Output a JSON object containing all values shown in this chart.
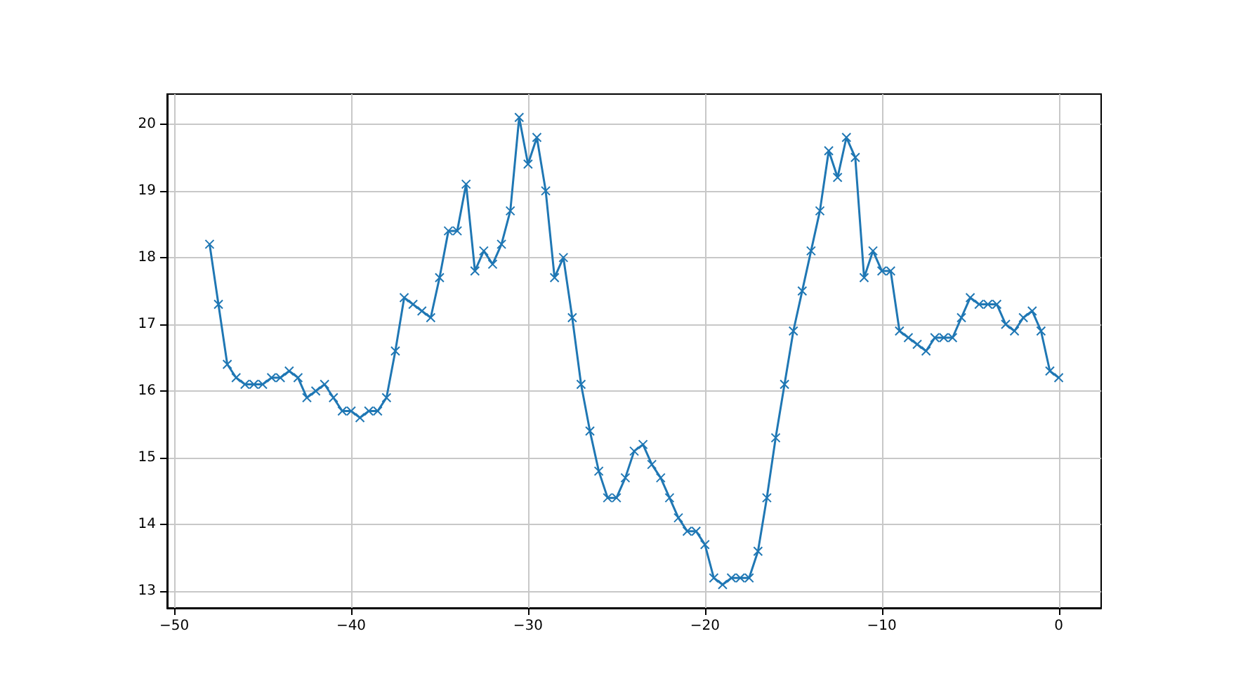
{
  "chart_data": {
    "type": "line",
    "x": [
      -48,
      -47.5,
      -47,
      -46.5,
      -46,
      -45.5,
      -45,
      -44.5,
      -44,
      -43.5,
      -43,
      -42.5,
      -42,
      -41.5,
      -41,
      -40.5,
      -40,
      -39.5,
      -39,
      -38.5,
      -38,
      -37.5,
      -37,
      -36.5,
      -36,
      -35.5,
      -35,
      -34.5,
      -34,
      -33.5,
      -33,
      -32.5,
      -32,
      -31.5,
      -31,
      -30.5,
      -30,
      -29.5,
      -29,
      -28.5,
      -28,
      -27.5,
      -27,
      -26.5,
      -26,
      -25.5,
      -25,
      -24.5,
      -24,
      -23.5,
      -23,
      -22.5,
      -22,
      -21.5,
      -21,
      -20.5,
      -20,
      -19.5,
      -19,
      -18.5,
      -18,
      -17.5,
      -17,
      -16.5,
      -16,
      -15.5,
      -15,
      -14.5,
      -14,
      -13.5,
      -13,
      -12.5,
      -12,
      -11.5,
      -11,
      -10.5,
      -10,
      -9.5,
      -9,
      -8.5,
      -8,
      -7.5,
      -7,
      -6.5,
      -6,
      -5.5,
      -5,
      -4.5,
      -4,
      -3.5,
      -3,
      -2.5,
      -2,
      -1.5,
      -1,
      -0.5,
      0
    ],
    "series": [
      {
        "color": "#1f77b4",
        "values": [
          18.2,
          17.3,
          16.4,
          16.2,
          16.1,
          16.1,
          16.1,
          16.2,
          16.2,
          16.3,
          16.2,
          15.9,
          16.0,
          16.1,
          15.9,
          15.7,
          15.7,
          15.6,
          15.7,
          15.7,
          15.9,
          16.6,
          17.4,
          17.3,
          17.2,
          17.1,
          17.7,
          18.4,
          18.4,
          19.1,
          17.8,
          18.1,
          17.9,
          18.2,
          18.7,
          20.1,
          19.4,
          19.8,
          19.0,
          17.7,
          18.0,
          17.1,
          16.1,
          15.4,
          14.8,
          14.4,
          14.4,
          14.7,
          15.1,
          15.2,
          14.9,
          14.7,
          14.4,
          14.1,
          13.9,
          13.9,
          13.7,
          13.2,
          13.1,
          13.2,
          13.2,
          13.2,
          13.6,
          14.4,
          15.3,
          16.1,
          16.9,
          17.5,
          18.1,
          18.7,
          19.6,
          19.2,
          19.8,
          19.5,
          17.7,
          18.1,
          17.8,
          17.8,
          16.9,
          16.8,
          16.7,
          16.6,
          16.8,
          16.8,
          16.8,
          17.1,
          17.4,
          17.3,
          17.3,
          17.3,
          17.0,
          16.9,
          17.1,
          17.2,
          16.9,
          16.3,
          16.2
        ]
      }
    ],
    "xlim": [
      -50.4,
      2.4
    ],
    "xticks": [
      -50,
      -40,
      -30,
      -20,
      -10,
      0
    ],
    "ylim": [
      12.75,
      20.45
    ],
    "yticks": [
      13,
      14,
      15,
      16,
      17,
      18,
      19,
      20
    ],
    "grid": true,
    "marker": "cross",
    "line_style": "solid"
  }
}
